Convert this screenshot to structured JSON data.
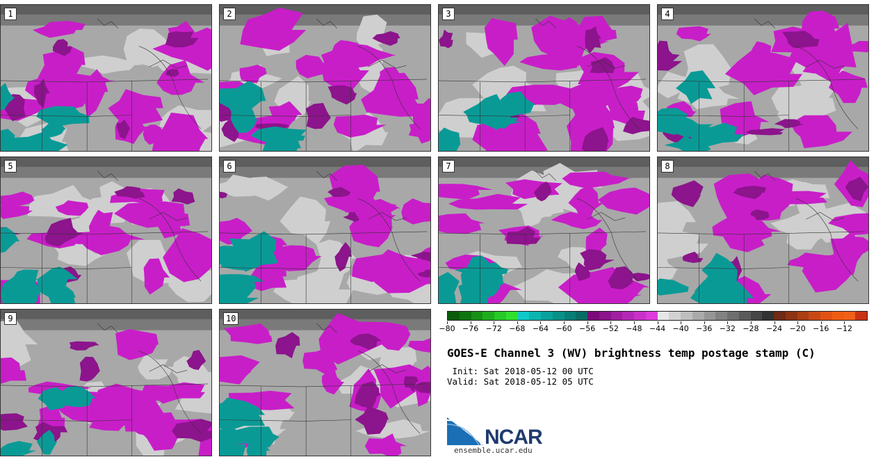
{
  "panels": [
    {
      "label": "1"
    },
    {
      "label": "2"
    },
    {
      "label": "3"
    },
    {
      "label": "4"
    },
    {
      "label": "5"
    },
    {
      "label": "6"
    },
    {
      "label": "7"
    },
    {
      "label": "8"
    },
    {
      "label": "9"
    },
    {
      "label": "10"
    }
  ],
  "colorbar": {
    "colors": [
      "#0a5c0a",
      "#0f760f",
      "#169016",
      "#1eac1e",
      "#27c827",
      "#30e030",
      "#10c8c8",
      "#0cb4b0",
      "#0aa09c",
      "#089088",
      "#087e78",
      "#086c66",
      "#7a0a7a",
      "#8c148c",
      "#a01ea0",
      "#b428b4",
      "#c832c8",
      "#dc3cdc",
      "#e6e6e6",
      "#d2d2d2",
      "#bebebe",
      "#aaaaaa",
      "#969696",
      "#828282",
      "#6e6e6e",
      "#5a5a5a",
      "#464646",
      "#323232",
      "#6e2a14",
      "#8c3414",
      "#aa3e14",
      "#c84814",
      "#e05214",
      "#ee5c14",
      "#f06018",
      "#c83214"
    ],
    "tick_labels": [
      "−80",
      "−76",
      "−72",
      "−68",
      "−64",
      "−60",
      "−56",
      "−52",
      "−48",
      "−44",
      "−40",
      "−36",
      "−32",
      "−28",
      "−24",
      "−20",
      "−16",
      "−12"
    ]
  },
  "title": "GOES-E Channel 3 (WV) brightness temp postage stamp (C)",
  "init": " Init: Sat 2018-05-12 00 UTC",
  "valid": "Valid: Sat 2018-05-12 05 UTC",
  "logo": {
    "text": "NCAR",
    "brand_color": "#1f3b6e",
    "accent_color": "#1a6fb5"
  },
  "site": "ensemble.ucar.edu"
}
